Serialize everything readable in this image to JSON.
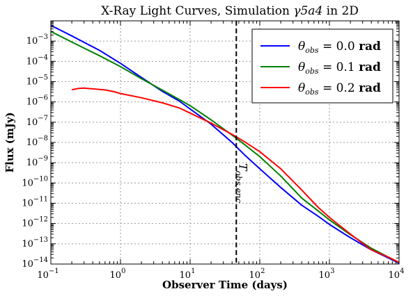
{
  "chart_data": {
    "type": "line",
    "title_main": "X-Ray Light Curves, Simulation ",
    "title_math": "γ5a4",
    "title_tail": " in 2D",
    "xlabel": "Observer Time (days)",
    "ylabel": "Flux (mJy)",
    "xscale": "log",
    "yscale": "log",
    "xlim": [
      0.1,
      10000
    ],
    "ylim": [
      1e-14,
      0.01
    ],
    "grid": true,
    "legend_position": "top-right",
    "x_tick_labels": [
      "10",
      "10",
      "10",
      "10",
      "10",
      "10"
    ],
    "x_tick_exponents": [
      "−1",
      "0",
      "1",
      "2",
      "3",
      "4"
    ],
    "y_tick_labels": [
      "10",
      "10",
      "10",
      "10",
      "10",
      "10",
      "10",
      "10",
      "10",
      "10",
      "10",
      "10"
    ],
    "y_tick_exponents": [
      "−14",
      "−13",
      "−12",
      "−11",
      "−10",
      "−9",
      "−8",
      "−7",
      "−6",
      "−5",
      "−4",
      "−3"
    ],
    "series": [
      {
        "name_math": "θ",
        "name_sub": "obs",
        "name_val": " = 0.0 ",
        "name_unit": "rad",
        "color": "#0000ff",
        "x": [
          0.1,
          0.2,
          0.5,
          1,
          2,
          4,
          7,
          10,
          20,
          40,
          60,
          100,
          200,
          400,
          700,
          1000,
          2000,
          4000,
          7000,
          10000
        ],
        "y": [
          0.006,
          0.0018,
          0.00035,
          8e-05,
          1.6e-05,
          3.3e-06,
          1.1e-06,
          4.5e-07,
          8e-08,
          1e-08,
          2.5e-09,
          5e-10,
          6e-11,
          8e-12,
          2.2e-12,
          9e-13,
          2e-13,
          5e-14,
          2e-14,
          1.1e-14
        ]
      },
      {
        "name_math": "θ",
        "name_sub": "obs",
        "name_val": " = 0.1 ",
        "name_unit": "rad",
        "color": "#008000",
        "x": [
          0.1,
          0.2,
          0.5,
          1,
          2,
          4,
          7,
          10,
          20,
          40,
          60,
          100,
          200,
          400,
          700,
          1000,
          2000,
          4000,
          7000,
          10000
        ],
        "y": [
          0.003,
          0.0009,
          0.00019,
          5.5e-05,
          1.4e-05,
          3.8e-06,
          1.3e-06,
          6.5e-07,
          1.3e-07,
          2.3e-08,
          8e-09,
          2e-09,
          2.2e-10,
          1.8e-11,
          4e-12,
          1.5e-12,
          2.8e-13,
          6e-14,
          2.2e-14,
          1.2e-14
        ]
      },
      {
        "name_math": "θ",
        "name_sub": "obs",
        "name_val": " = 0.2 ",
        "name_unit": "rad",
        "color": "#ff0000",
        "x": [
          0.2,
          0.25,
          0.3,
          0.4,
          0.6,
          0.8,
          1,
          2,
          4,
          7,
          10,
          20,
          40,
          60,
          100,
          200,
          400,
          700,
          1000,
          2000,
          4000,
          7000,
          10000
        ],
        "y": [
          4e-06,
          4.6e-06,
          4.8e-06,
          4.4e-06,
          3.9e-06,
          3.2e-06,
          2.6e-06,
          1.6e-06,
          9e-07,
          5e-07,
          2.8e-07,
          9e-08,
          2.5e-08,
          1.1e-08,
          3.5e-09,
          5e-10,
          4.5e-11,
          6e-12,
          2e-12,
          3e-13,
          5e-14,
          2.2e-14,
          1.2e-14
        ]
      }
    ],
    "vline": {
      "x": 46,
      "label_main": "T",
      "label_sub": "obs,enc"
    }
  }
}
